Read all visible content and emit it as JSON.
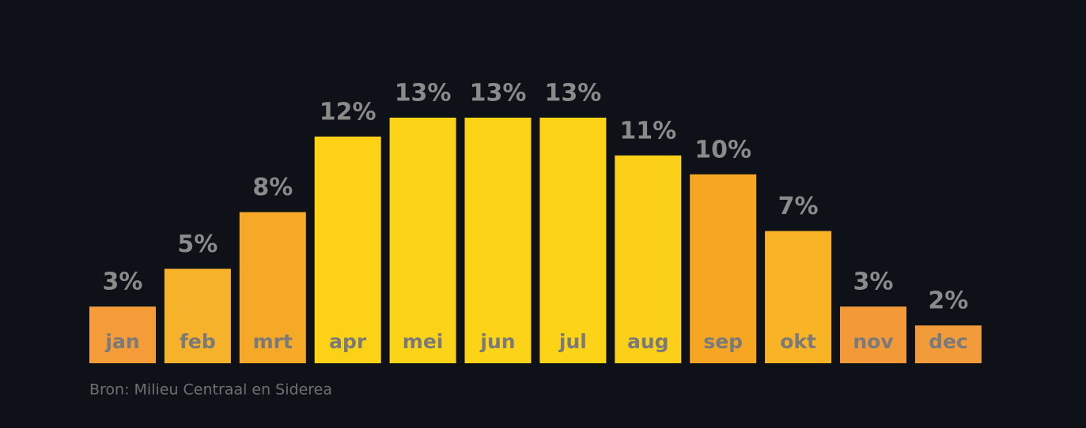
{
  "chart_data": {
    "type": "bar",
    "categories": [
      "jan",
      "feb",
      "mrt",
      "apr",
      "mei",
      "jun",
      "jul",
      "aug",
      "sep",
      "okt",
      "nov",
      "dec"
    ],
    "values": [
      3,
      5,
      8,
      12,
      13,
      13,
      13,
      11,
      10,
      7,
      3,
      2
    ],
    "value_labels": [
      "3%",
      "5%",
      "8%",
      "12%",
      "13%",
      "13%",
      "13%",
      "11%",
      "10%",
      "7%",
      "3%",
      "2%"
    ],
    "colors": [
      "#f39c38",
      "#f7b22b",
      "#f6a927",
      "#fcd116",
      "#fdd317",
      "#fdd317",
      "#fdd317",
      "#fccf18",
      "#f6a623",
      "#f8b425",
      "#f39a38",
      "#f29b3a"
    ],
    "source": "Bron: Milieu Centraal en Siderea"
  }
}
